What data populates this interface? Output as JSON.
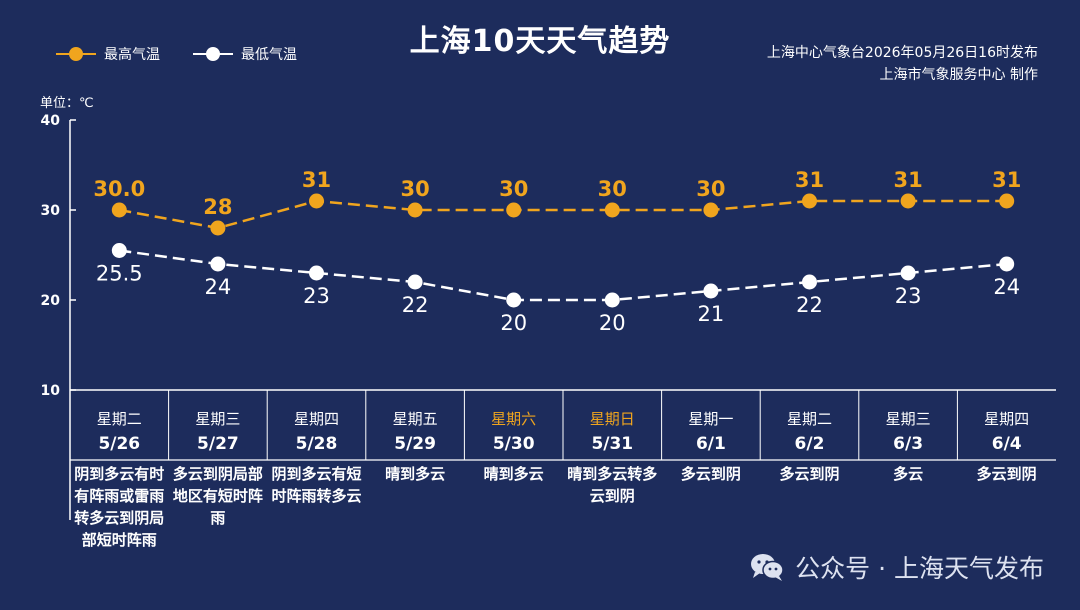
{
  "title": "上海10天天气趋势",
  "issuer": {
    "line1": "上海中心气象台2026年05月26日16时发布",
    "line2": "上海市气象服务中心  制作"
  },
  "unit_label": "单位：℃",
  "watermark": {
    "text": "公众号 · 上海天气发布",
    "icon": "wechat-icon"
  },
  "colors": {
    "background": "#1d2c5c",
    "high": "#f0a51e",
    "low": "#ffffff",
    "weekend": "#f0a51e"
  },
  "chart_data": {
    "type": "line",
    "title": "上海10天天气趋势",
    "ylabel": "单位：℃",
    "ylim": [
      10,
      40
    ],
    "yticks": [
      10,
      20,
      30,
      40
    ],
    "grid": false,
    "legend_position": "top-left",
    "categories": [
      "5/26",
      "5/27",
      "5/28",
      "5/29",
      "5/30",
      "5/31",
      "6/1",
      "6/2",
      "6/3",
      "6/4"
    ],
    "series": [
      {
        "name": "最高气温",
        "color": "#f0a51e",
        "values": [
          30.0,
          28,
          31,
          30,
          30,
          30,
          30,
          31,
          31,
          31
        ],
        "labels": [
          "30.0",
          "28",
          "31",
          "30",
          "30",
          "30",
          "30",
          "31",
          "31",
          "31"
        ]
      },
      {
        "name": "最低气温",
        "color": "#ffffff",
        "values": [
          25.5,
          24,
          23,
          22,
          20,
          20,
          21,
          22,
          23,
          24
        ],
        "labels": [
          "25.5",
          "24",
          "23",
          "22",
          "20",
          "20",
          "21",
          "22",
          "23",
          "24"
        ]
      }
    ]
  },
  "days": [
    {
      "weekday": "星期二",
      "date": "5/26",
      "weather": "阴到多云有时有阵雨或雷雨转多云到阴局部短时阵雨",
      "weekend": false
    },
    {
      "weekday": "星期三",
      "date": "5/27",
      "weather": "多云到阴局部地区有短时阵雨",
      "weekend": false
    },
    {
      "weekday": "星期四",
      "date": "5/28",
      "weather": "阴到多云有短时阵雨转多云",
      "weekend": false
    },
    {
      "weekday": "星期五",
      "date": "5/29",
      "weather": "晴到多云",
      "weekend": false
    },
    {
      "weekday": "星期六",
      "date": "5/30",
      "weather": "晴到多云",
      "weekend": true
    },
    {
      "weekday": "星期日",
      "date": "5/31",
      "weather": "晴到多云转多云到阴",
      "weekend": true
    },
    {
      "weekday": "星期一",
      "date": "6/1",
      "weather": "多云到阴",
      "weekend": false
    },
    {
      "weekday": "星期二",
      "date": "6/2",
      "weather": "多云到阴",
      "weekend": false
    },
    {
      "weekday": "星期三",
      "date": "6/3",
      "weather": "多云",
      "weekend": false
    },
    {
      "weekday": "星期四",
      "date": "6/4",
      "weather": "多云到阴",
      "weekend": false
    }
  ]
}
